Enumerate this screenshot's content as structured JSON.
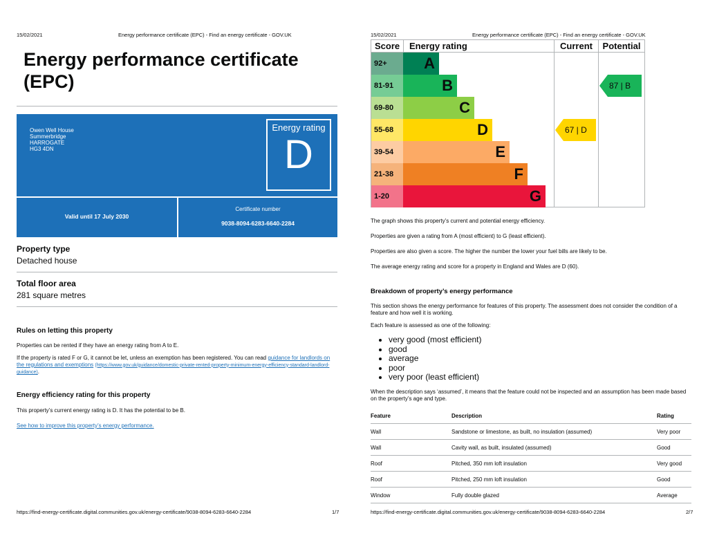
{
  "header": {
    "date": "15/02/2021",
    "doc_title": "Energy performance certificate (EPC) - Find an energy certificate - GOV.UK"
  },
  "page1": {
    "title": "Energy performance certificate (EPC)",
    "address": [
      "Owen Well House",
      "Summerbridge",
      "HARROGATE",
      "HG3 4DN"
    ],
    "rating_label": "Energy rating",
    "rating": "D",
    "valid_until": "Valid until 17 July 2030",
    "cert_label": "Certificate number",
    "cert_number": "9038-8094-6283-6640-2284",
    "property_type_label": "Property type",
    "property_type": "Detached house",
    "floor_area_label": "Total floor area",
    "floor_area": "281 square metres",
    "letting_heading": "Rules on letting this property",
    "letting_p1": "Properties can be rented if they have an energy rating from A to E.",
    "letting_p2_text": "If the property is rated F or G, it cannot be let, unless an exemption has been registered. You can read ",
    "letting_p2_link": "guidance for landlords on the regulations and exemptions",
    "letting_p2_url": "(https://www.gov.uk/guidance/domestic-private-rented-property-minimum-energy-efficiency-standard-landlord-guidance)",
    "letting_p2_end": ".",
    "efficiency_heading": "Energy efficiency rating for this property",
    "efficiency_text": "This property’s current energy rating is D. It has the potential to be B.",
    "improve_link": "See how to improve this property’s energy performance.",
    "footer_url": "https://find-energy-certificate.digital.communities.gov.uk/energy-certificate/9038-8094-6283-6640-2284",
    "page_num": "1/7"
  },
  "page2": {
    "chart_caption": "The graph shows this property’s current and potential energy efficiency.",
    "p_ratings": "Properties are given a rating from A (most efficient) to G (least efficient).",
    "p_score": "Properties are also given a score. The higher the number the lower your fuel bills are likely to be.",
    "p_average": "The average energy rating and score for a property in England and Wales are D (60).",
    "breakdown_heading": "Breakdown of property’s energy performance",
    "breakdown_p1": "This section shows the energy performance for features of this property. The assessment does not consider the condition of a feature and how well it is working.",
    "breakdown_p2": "Each feature is assessed as one of the following:",
    "bullets": [
      "very good (most efficient)",
      "good",
      "average",
      "poor",
      "very poor (least efficient)"
    ],
    "assumed_note": "When the description says ‘assumed’, it means that the feature could not be inspected and an assumption has been made based on the property’s age and type.",
    "table": {
      "headers": [
        "Feature",
        "Description",
        "Rating"
      ],
      "rows": [
        [
          "Wall",
          "Sandstone or limestone, as built, no insulation (assumed)",
          "Very poor"
        ],
        [
          "Wall",
          "Cavity wall, as built, insulated (assumed)",
          "Good"
        ],
        [
          "Roof",
          "Pitched, 350 mm loft insulation",
          "Very good"
        ],
        [
          "Roof",
          "Pitched, 250 mm loft insulation",
          "Good"
        ],
        [
          "Window",
          "Fully double glazed",
          "Average"
        ]
      ]
    },
    "footer_url": "https://find-energy-certificate.digital.communities.gov.uk/energy-certificate/9038-8094-6283-6640-2284",
    "page_num": "2/7"
  },
  "chart_data": {
    "type": "bar",
    "headers": [
      "Score",
      "Energy rating",
      "Current",
      "Potential"
    ],
    "categories": [
      "92+",
      "81-91",
      "69-80",
      "55-68",
      "39-54",
      "21-38",
      "1-20"
    ],
    "bands": [
      "A",
      "B",
      "C",
      "D",
      "E",
      "F",
      "G"
    ],
    "colors": [
      "#008054",
      "#19b459",
      "#8dce46",
      "#ffd500",
      "#fcaa65",
      "#ef8023",
      "#e9153b"
    ],
    "score_bg": [
      "#6bab8f",
      "#76cc95",
      "#badf93",
      "#ffe766",
      "#fdcca3",
      "#f5b37b",
      "#f2738a"
    ],
    "relative_length": [
      1,
      2,
      3,
      4,
      5,
      6,
      7
    ],
    "current": {
      "score": 67,
      "band": "D",
      "label": "67 |  D",
      "color": "#ffd500"
    },
    "potential": {
      "score": 87,
      "band": "B",
      "label": "87 |  B",
      "color": "#19b459"
    }
  }
}
